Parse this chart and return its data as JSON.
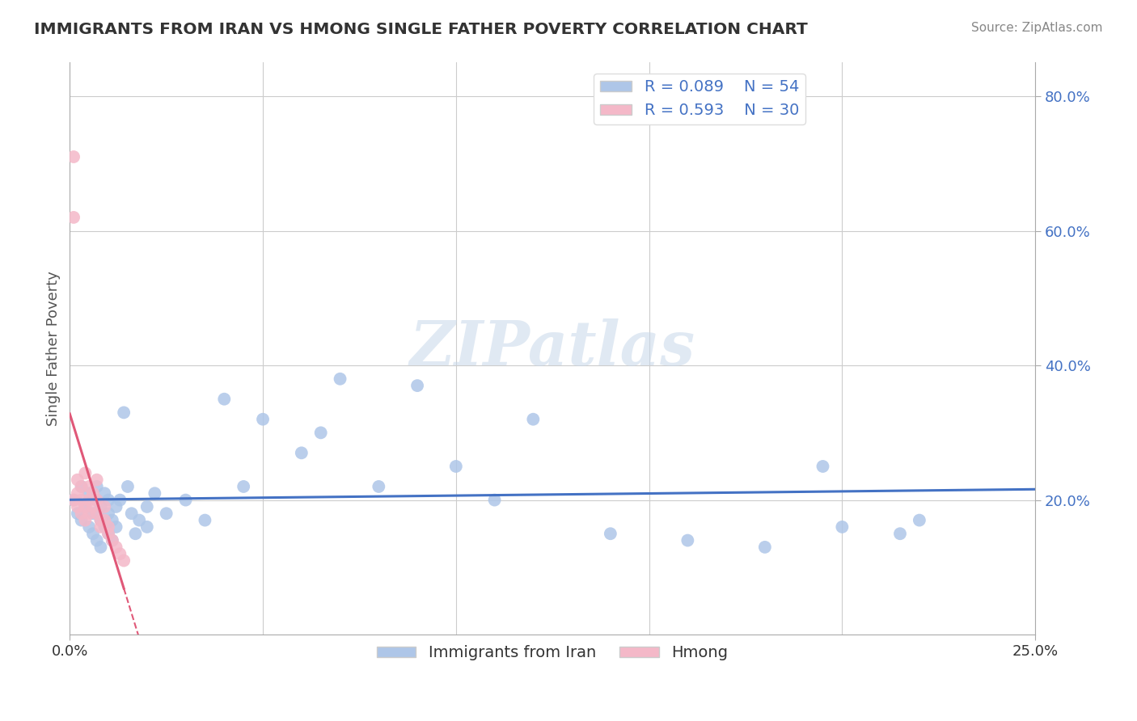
{
  "title": "IMMIGRANTS FROM IRAN VS HMONG SINGLE FATHER POVERTY CORRELATION CHART",
  "source": "Source: ZipAtlas.com",
  "ylabel": "Single Father Poverty",
  "xlim": [
    0.0,
    0.25
  ],
  "ylim": [
    0.0,
    0.85
  ],
  "iran_R": 0.089,
  "iran_N": 54,
  "hmong_R": 0.593,
  "hmong_N": 30,
  "iran_color": "#aec6e8",
  "hmong_color": "#f4b8c8",
  "iran_line_color": "#4472c4",
  "hmong_line_color": "#e05878",
  "background_color": "#ffffff",
  "grid_color": "#cccccc",
  "watermark": "ZIPatlas",
  "iran_scatter_x": [
    0.001,
    0.002,
    0.003,
    0.003,
    0.004,
    0.005,
    0.005,
    0.006,
    0.006,
    0.007,
    0.007,
    0.007,
    0.008,
    0.008,
    0.008,
    0.009,
    0.009,
    0.01,
    0.01,
    0.01,
    0.011,
    0.011,
    0.012,
    0.012,
    0.013,
    0.014,
    0.015,
    0.016,
    0.017,
    0.018,
    0.02,
    0.02,
    0.022,
    0.025,
    0.03,
    0.035,
    0.04,
    0.045,
    0.05,
    0.06,
    0.065,
    0.07,
    0.08,
    0.09,
    0.1,
    0.11,
    0.12,
    0.14,
    0.16,
    0.18,
    0.195,
    0.2,
    0.215,
    0.22
  ],
  "iran_scatter_y": [
    0.2,
    0.18,
    0.22,
    0.17,
    0.19,
    0.16,
    0.21,
    0.15,
    0.18,
    0.2,
    0.14,
    0.22,
    0.17,
    0.19,
    0.13,
    0.16,
    0.21,
    0.18,
    0.15,
    0.2,
    0.14,
    0.17,
    0.19,
    0.16,
    0.2,
    0.33,
    0.22,
    0.18,
    0.15,
    0.17,
    0.19,
    0.16,
    0.21,
    0.18,
    0.2,
    0.17,
    0.35,
    0.22,
    0.32,
    0.27,
    0.3,
    0.38,
    0.22,
    0.37,
    0.25,
    0.2,
    0.32,
    0.15,
    0.14,
    0.13,
    0.25,
    0.16,
    0.15,
    0.17
  ],
  "hmong_scatter_x": [
    0.001,
    0.001,
    0.001,
    0.002,
    0.002,
    0.002,
    0.003,
    0.003,
    0.003,
    0.004,
    0.004,
    0.004,
    0.005,
    0.005,
    0.005,
    0.006,
    0.006,
    0.007,
    0.007,
    0.007,
    0.008,
    0.008,
    0.009,
    0.009,
    0.01,
    0.01,
    0.011,
    0.012,
    0.013,
    0.014
  ],
  "hmong_scatter_y": [
    0.71,
    0.62,
    0.2,
    0.23,
    0.21,
    0.19,
    0.22,
    0.2,
    0.18,
    0.24,
    0.19,
    0.17,
    0.22,
    0.2,
    0.18,
    0.21,
    0.19,
    0.23,
    0.2,
    0.18,
    0.17,
    0.16,
    0.19,
    0.17,
    0.16,
    0.15,
    0.14,
    0.13,
    0.12,
    0.11
  ]
}
